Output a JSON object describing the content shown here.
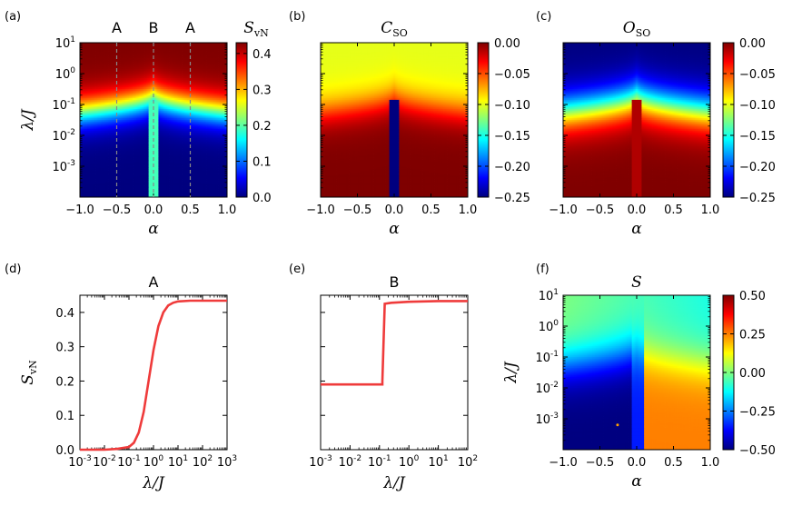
{
  "colors": {
    "jet": [
      "#00007f",
      "#0000ff",
      "#007fff",
      "#00ffff",
      "#7fff7f",
      "#ffff00",
      "#ff7f00",
      "#ff0000",
      "#7f0000"
    ],
    "red_line": "#ef3b3b",
    "orange_region": "#ff9f00",
    "blue_mid": "#2a8cff"
  },
  "chart_data": [
    {
      "id": "a",
      "type": "heatmap",
      "panel_label": "(a)",
      "title": "S",
      "title_subscript": "vN",
      "xlabel": "α",
      "ylabel": "λ/J",
      "xlim": [
        -1.0,
        1.0
      ],
      "ylim_log10": [
        -4,
        1
      ],
      "x_ticks": [
        "−1.0",
        "−0.5",
        "0.0",
        "0.5",
        "1.0"
      ],
      "y_ticks": [
        "10^-3",
        "10^-2",
        "10^-1",
        "10^0",
        "10^1"
      ],
      "y_scale": "log",
      "colorbar_range": [
        0.0,
        0.43
      ],
      "colorbar_ticks": [
        "0.0",
        "0.1",
        "0.2",
        "0.3",
        "0.4"
      ],
      "cut_markers": [
        {
          "label": "A",
          "x": -0.5
        },
        {
          "label": "B",
          "x": 0.0
        },
        {
          "label": "A",
          "x": 0.5
        }
      ],
      "saturation_value": 0.43,
      "center_strip_value": 0.19,
      "center_strip_halfwidth": 0.07,
      "transition_log10_lambda": -0.9
    },
    {
      "id": "b",
      "type": "heatmap",
      "panel_label": "(b)",
      "title": "C",
      "title_subscript": "SO",
      "xlabel": "α",
      "xlim": [
        -1.0,
        1.0
      ],
      "ylim_log10": [
        -4,
        1
      ],
      "x_ticks": [
        "−1.0",
        "−0.5",
        "0.0",
        "0.5",
        "1.0"
      ],
      "y_scale": "log",
      "colorbar_range": [
        -0.25,
        0.0
      ],
      "colorbar_ticks": [
        "0.00",
        "−0.05",
        "−0.10",
        "−0.15",
        "−0.20",
        "−0.25"
      ],
      "top_value": -0.1,
      "center_strip_value": -0.25
    },
    {
      "id": "c",
      "type": "heatmap",
      "panel_label": "(c)",
      "title": "O",
      "title_subscript": "SO",
      "xlabel": "α",
      "xlim": [
        -1.0,
        1.0
      ],
      "ylim_log10": [
        -4,
        1
      ],
      "x_ticks": [
        "−1.0",
        "−0.5",
        "0.0",
        "0.5",
        "1.0"
      ],
      "y_scale": "log",
      "colorbar_range": [
        -0.25,
        0.0
      ],
      "colorbar_ticks": [
        "0.00",
        "−0.05",
        "−0.10",
        "−0.15",
        "−0.20",
        "−0.25"
      ],
      "top_value": -0.25
    },
    {
      "id": "d",
      "type": "line",
      "panel_label": "(d)",
      "title": "A",
      "xlabel": "λ/J",
      "ylabel": "S",
      "ylabel_subscript": "vN",
      "x_scale": "log",
      "xlim_log10": [
        -3,
        3
      ],
      "ylim": [
        0.0,
        0.45
      ],
      "x_ticks": [
        "10^-3",
        "10^-2",
        "10^-1",
        "10^0",
        "10^1",
        "10^2",
        "10^3"
      ],
      "y_ticks": [
        "0.0",
        "0.1",
        "0.2",
        "0.3",
        "0.4"
      ],
      "series": [
        {
          "log10_x": [
            -3,
            -2,
            -1.5,
            -1,
            -0.8,
            -0.6,
            -0.4,
            -0.2,
            0,
            0.2,
            0.4,
            0.6,
            0.8,
            1,
            1.5,
            2,
            3
          ],
          "y": [
            0.0,
            0.0,
            0.002,
            0.008,
            0.02,
            0.05,
            0.11,
            0.2,
            0.29,
            0.36,
            0.4,
            0.42,
            0.428,
            0.432,
            0.434,
            0.434,
            0.434
          ]
        }
      ]
    },
    {
      "id": "e",
      "type": "line",
      "panel_label": "(e)",
      "title": "B",
      "xlabel": "λ/J",
      "x_scale": "log",
      "xlim_log10": [
        -3,
        2
      ],
      "ylim": [
        0.0,
        0.45
      ],
      "x_ticks": [
        "10^-3",
        "10^-2",
        "10^-1",
        "10^0",
        "10^1",
        "10^2"
      ],
      "series": [
        {
          "log10_x": [
            -3,
            -0.9,
            -0.9,
            -0.82,
            -0.6,
            0,
            1,
            2
          ],
          "y": [
            0.19,
            0.19,
            0.2,
            0.425,
            0.428,
            0.431,
            0.433,
            0.433
          ]
        }
      ]
    },
    {
      "id": "f",
      "type": "heatmap",
      "panel_label": "(f)",
      "title": "S",
      "xlabel": "α",
      "ylabel": "λ/J",
      "xlim": [
        -1.0,
        1.0
      ],
      "ylim_log10": [
        -4,
        1
      ],
      "x_ticks": [
        "−1.0",
        "−0.5",
        "0.0",
        "0.5",
        "1.0"
      ],
      "y_ticks": [
        "10^-3",
        "10^-2",
        "10^-1",
        "10^0",
        "10^1"
      ],
      "y_scale": "log",
      "colorbar_range": [
        -0.5,
        0.5
      ],
      "colorbar_ticks": [
        "0.50",
        "0.25",
        "0.00",
        "−0.25",
        "−0.50"
      ],
      "low_left_value": -0.5,
      "low_right_value": 0.25,
      "center_strip_value": -0.35,
      "top_value": -0.05
    }
  ]
}
